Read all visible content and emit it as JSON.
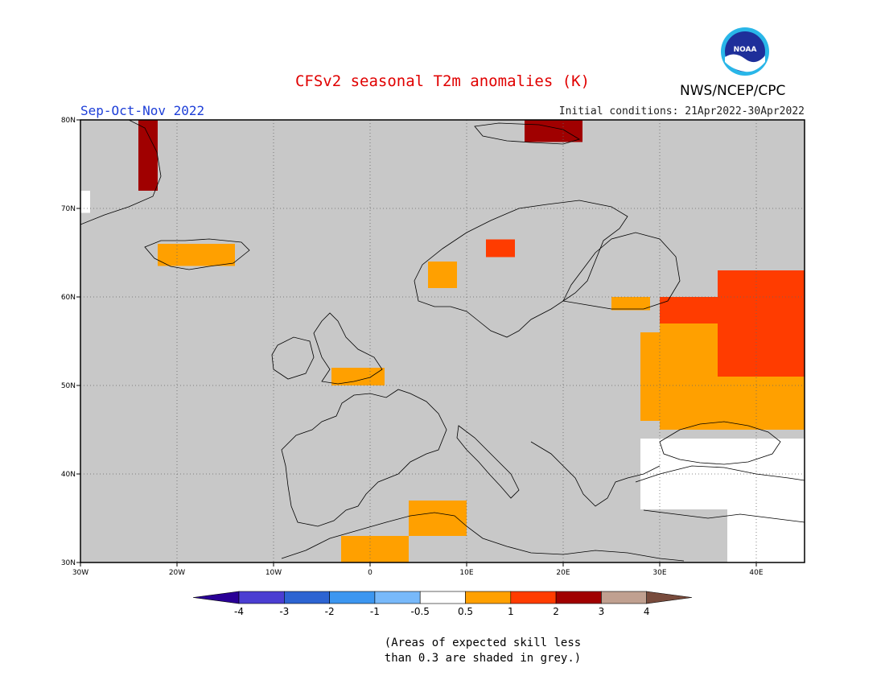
{
  "header": {
    "title": "CFSv2 seasonal T2m anomalies (K)",
    "agency": "NWS/NCEP/CPC",
    "season": "Sep-Oct-Nov 2022",
    "initial_conditions": "Initial conditions: 21Apr2022-30Apr2022",
    "logo_text": "NOAA"
  },
  "colors": {
    "title": "#e00000",
    "season": "#1e3fd8",
    "skill_grey": "#c8c8c8",
    "land_line": "#000000",
    "sea_fill": "#c8c8c8"
  },
  "map": {
    "lon_range": [
      -30,
      45
    ],
    "lat_range": [
      30,
      80
    ],
    "lon_ticks": [
      {
        "value": -30,
        "label": "30W"
      },
      {
        "value": -20,
        "label": "20W"
      },
      {
        "value": -10,
        "label": "10W"
      },
      {
        "value": 0,
        "label": "0"
      },
      {
        "value": 10,
        "label": "10E"
      },
      {
        "value": 20,
        "label": "20E"
      },
      {
        "value": 30,
        "label": "30E"
      },
      {
        "value": 40,
        "label": "40E"
      }
    ],
    "lat_ticks": [
      {
        "value": 30,
        "label": "30N"
      },
      {
        "value": 40,
        "label": "40N"
      },
      {
        "value": 50,
        "label": "50N"
      },
      {
        "value": 60,
        "label": "60N"
      },
      {
        "value": 70,
        "label": "70N"
      },
      {
        "value": 80,
        "label": "80N"
      }
    ],
    "grid": true,
    "anomaly_regions": [
      {
        "class": "0.5-1",
        "lon": [
          30,
          45
        ],
        "lat": [
          45,
          57
        ]
      },
      {
        "class": "0.5-1",
        "lon": [
          28,
          33
        ],
        "lat": [
          46,
          56
        ]
      },
      {
        "class": "1-2",
        "lon": [
          36,
          45
        ],
        "lat": [
          51,
          63
        ]
      },
      {
        "class": "1-2",
        "lon": [
          30,
          38
        ],
        "lat": [
          57,
          60
        ]
      },
      {
        "class": "0.5-1",
        "lon": [
          -22,
          -14
        ],
        "lat": [
          63.5,
          66
        ]
      },
      {
        "class": "0.5-1",
        "lon": [
          -4,
          1.5
        ],
        "lat": [
          50,
          52
        ]
      },
      {
        "class": "0.5-1",
        "lon": [
          -3,
          4
        ],
        "lat": [
          30,
          33
        ]
      },
      {
        "class": "0.5-1",
        "lon": [
          4,
          10
        ],
        "lat": [
          33,
          37
        ]
      },
      {
        "class": "0.5-1",
        "lon": [
          6,
          9
        ],
        "lat": [
          61,
          64
        ]
      },
      {
        "class": "1-2",
        "lon": [
          12,
          15
        ],
        "lat": [
          64.5,
          66.5
        ]
      },
      {
        "class": "2-3",
        "lon": [
          -24,
          -22
        ],
        "lat": [
          72,
          80
        ]
      },
      {
        "class": "2-3",
        "lon": [
          16,
          22
        ],
        "lat": [
          77.5,
          80
        ]
      },
      {
        "class": "-0.5-0.5",
        "lon": [
          28,
          45
        ],
        "lat": [
          36,
          44
        ]
      },
      {
        "class": "-0.5-0.5",
        "lon": [
          37,
          45
        ],
        "lat": [
          30,
          36
        ]
      },
      {
        "class": "-0.5-0.5",
        "lon": [
          -30,
          -29
        ],
        "lat": [
          69.5,
          72
        ]
      },
      {
        "class": "0.5-1",
        "lon": [
          25,
          29
        ],
        "lat": [
          58.5,
          60
        ]
      }
    ]
  },
  "colorbar": {
    "colors": [
      "#2a0096",
      "#4b3ed2",
      "#2d64d2",
      "#3c96f0",
      "#78b9fa",
      "#ffffff",
      "#ffa000",
      "#ff3c00",
      "#a00000",
      "#c0a090",
      "#784b3c"
    ],
    "labels": [
      "-4",
      "-3",
      "-2",
      "-1",
      "-0.5",
      "0.5",
      "1",
      "2",
      "3",
      "4"
    ]
  },
  "notes": {
    "line1": "(Areas of expected skill less",
    "line2": "than 0.3 are shaded in grey.)"
  }
}
